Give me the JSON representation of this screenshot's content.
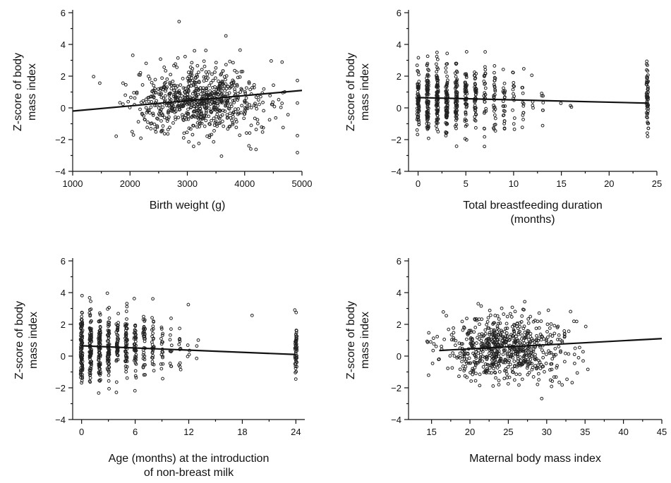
{
  "chart_data": [
    {
      "type": "scatter",
      "xlabel": "Birth weight (g)",
      "ylabel": [
        "Z-score of body",
        "mass index"
      ],
      "xlim": [
        1000,
        5000
      ],
      "ylim": [
        -4,
        6
      ],
      "xticks": [
        1000,
        2000,
        3000,
        4000,
        5000
      ],
      "yticks": [
        -4,
        -2,
        0,
        2,
        4,
        6
      ],
      "fit_line": [
        [
          1000,
          -0.2
        ],
        [
          5000,
          1.1
        ]
      ],
      "point_cloud": {
        "x_center": 3200,
        "x_spread": 600,
        "y_center": 0.45,
        "y_spread": 1.05,
        "count": 750
      },
      "grid": false
    },
    {
      "type": "scatter",
      "xlabel": [
        "Total breastfeeding duration",
        "(months)"
      ],
      "ylabel": [
        "Z-score of body",
        "mass index"
      ],
      "xlim": [
        -1,
        25
      ],
      "ylim": [
        -4,
        6
      ],
      "xticks": [
        0,
        5,
        10,
        15,
        20,
        25
      ],
      "yticks": [
        -4,
        -2,
        0,
        2,
        4,
        6
      ],
      "fit_line": [
        [
          0,
          0.65
        ],
        [
          24,
          0.3
        ]
      ],
      "point_cloud": {
        "discrete_x": [
          0,
          1,
          2,
          3,
          4,
          5,
          6,
          7,
          8,
          9,
          10,
          11,
          12,
          13,
          14,
          15,
          16,
          17,
          18,
          19,
          20,
          21,
          22,
          23,
          24
        ],
        "y_center": 0.5,
        "y_spread": 1.0,
        "count": 640
      },
      "grid": false
    },
    {
      "type": "scatter",
      "xlabel": [
        "Age (months) at the introduction",
        "of non-breast milk"
      ],
      "ylabel": [
        "Z-score of body",
        "mass index"
      ],
      "xlim": [
        -1,
        25
      ],
      "ylim": [
        -4,
        6
      ],
      "xticks": [
        0,
        6,
        12,
        18,
        24
      ],
      "yticks": [
        -4,
        -2,
        0,
        2,
        4,
        6
      ],
      "fit_line": [
        [
          0,
          0.65
        ],
        [
          24,
          0.1
        ]
      ],
      "point_cloud": {
        "discrete_x": [
          0,
          1,
          2,
          3,
          4,
          5,
          6,
          7,
          8,
          9,
          10,
          11,
          12,
          13,
          14,
          15,
          16,
          17,
          18,
          19,
          20,
          21,
          22,
          23,
          24
        ],
        "y_center": 0.5,
        "y_spread": 1.0,
        "count": 640
      },
      "grid": false
    },
    {
      "type": "scatter",
      "xlabel": "Maternal body mass index",
      "ylabel": [
        "Z-score of body",
        "mass index"
      ],
      "xlim": [
        12,
        45
      ],
      "ylim": [
        -4,
        6
      ],
      "xticks": [
        15,
        20,
        25,
        30,
        35,
        40,
        45
      ],
      "yticks": [
        -4,
        -2,
        0,
        2,
        4,
        6
      ],
      "fit_line": [
        [
          16,
          0.35
        ],
        [
          45,
          1.1
        ]
      ],
      "point_cloud": {
        "x_center": 24.5,
        "x_spread": 4.2,
        "y_center": 0.5,
        "y_spread": 1.0,
        "count": 700
      },
      "grid": false
    }
  ]
}
